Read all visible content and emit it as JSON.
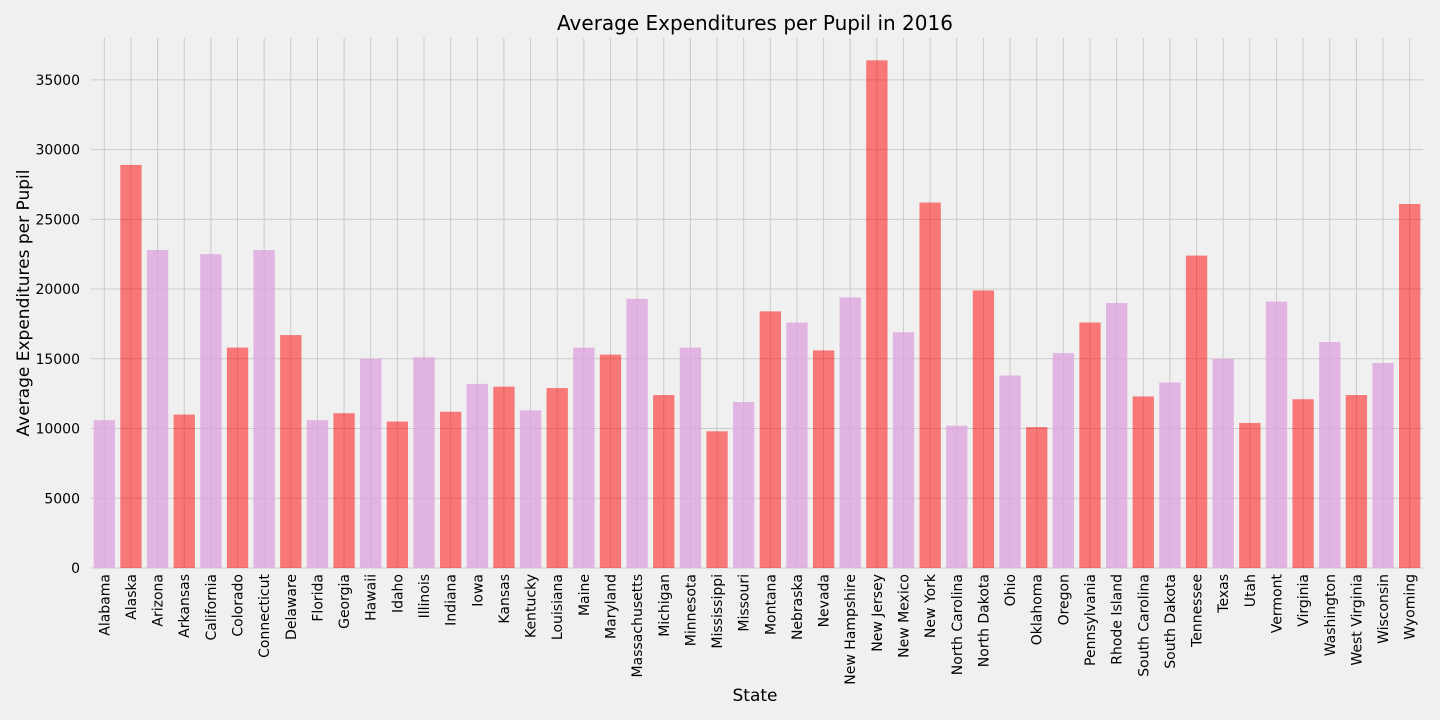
{
  "chart_data": {
    "type": "bar",
    "title": "Average Expenditures per Pupil in 2016",
    "xlabel": "State",
    "ylabel": "Average Expenditures per Pupil",
    "ylim": [
      0,
      38000
    ],
    "yticks": [
      0,
      5000,
      10000,
      15000,
      20000,
      25000,
      30000,
      35000
    ],
    "grid": true,
    "colors": {
      "pink": "#dda0dd",
      "red": "#ff0000",
      "background": "#f0f0f0",
      "grid": "#cbcbcb"
    },
    "categories": [
      "Alabama",
      "Alaska",
      "Arizona",
      "Arkansas",
      "California",
      "Colorado",
      "Connecticut",
      "Delaware",
      "Florida",
      "Georgia",
      "Hawaii",
      "Idaho",
      "Illinois",
      "Indiana",
      "Iowa",
      "Kansas",
      "Kentucky",
      "Louisiana",
      "Maine",
      "Maryland",
      "Massachusetts",
      "Michigan",
      "Minnesota",
      "Mississippi",
      "Missouri",
      "Montana",
      "Nebraska",
      "Nevada",
      "New Hampshire",
      "New Jersey",
      "New Mexico",
      "New York",
      "North Carolina",
      "North Dakota",
      "Ohio",
      "Oklahoma",
      "Oregon",
      "Pennsylvania",
      "Rhode Island",
      "South Carolina",
      "South Dakota",
      "Tennessee",
      "Texas",
      "Utah",
      "Vermont",
      "Virginia",
      "Washington",
      "West Virginia",
      "Wisconsin",
      "Wyoming"
    ],
    "values": [
      10600,
      28900,
      22800,
      11000,
      22500,
      15800,
      22800,
      16700,
      10600,
      11100,
      15000,
      10500,
      15100,
      11200,
      13200,
      13000,
      11300,
      12900,
      15800,
      15300,
      19300,
      12400,
      15800,
      9800,
      11900,
      18400,
      17600,
      15600,
      19400,
      36400,
      16900,
      26200,
      10200,
      19900,
      13800,
      10100,
      15400,
      17600,
      19000,
      12300,
      13300,
      22400,
      15000,
      10400,
      19100,
      12100,
      16200,
      12400,
      14700,
      26100
    ],
    "bar_colors": [
      "pink",
      "red",
      "pink",
      "red",
      "pink",
      "red",
      "pink",
      "red",
      "pink",
      "red",
      "pink",
      "red",
      "pink",
      "red",
      "pink",
      "red",
      "pink",
      "red",
      "pink",
      "red",
      "pink",
      "red",
      "pink",
      "red",
      "pink",
      "red",
      "pink",
      "red",
      "pink",
      "red",
      "pink",
      "red",
      "pink",
      "red",
      "pink",
      "red",
      "pink",
      "red",
      "pink",
      "red",
      "pink",
      "red",
      "pink",
      "red",
      "pink",
      "red",
      "pink",
      "red",
      "pink",
      "red"
    ]
  }
}
